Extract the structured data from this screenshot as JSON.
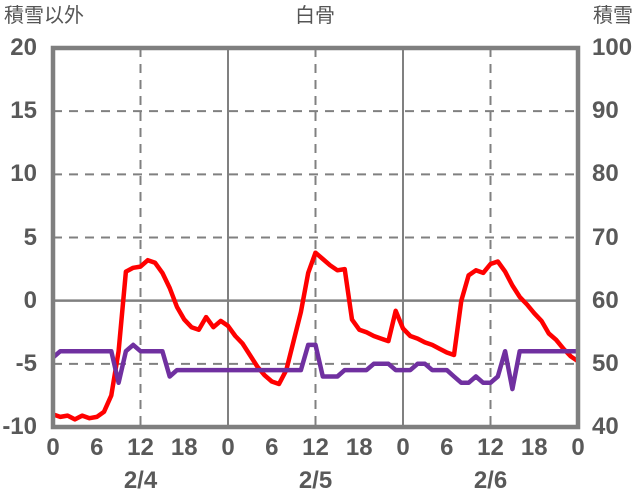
{
  "chart_data": {
    "type": "line",
    "title": "白骨",
    "left_axis": {
      "title": "積雪以外",
      "min": -10,
      "max": 20,
      "ticks": [
        20,
        15,
        10,
        5,
        0,
        -5,
        -10
      ]
    },
    "right_axis": {
      "title": "積雪",
      "min": 40,
      "max": 100,
      "ticks": [
        100,
        90,
        80,
        70,
        60,
        50,
        40
      ]
    },
    "x_axis": {
      "hours_total": 72,
      "tick_step_hours": 6,
      "hour_ticks": [
        "0",
        "6",
        "12",
        "18",
        "0",
        "6",
        "12",
        "18",
        "0",
        "6",
        "12",
        "18",
        "0"
      ],
      "day_labels": [
        "2/4",
        "2/5",
        "2/6"
      ]
    },
    "gridlines": {
      "h_dashed_values": [
        15,
        10,
        5,
        -5
      ],
      "h_solid_values": [
        0
      ],
      "v_dashed_hours": [
        12,
        36,
        60
      ],
      "v_solid_hours": [
        24,
        48
      ]
    },
    "style": {
      "grid_color": "#808080",
      "border_color": "#7f7f7f",
      "text_color": "#595959",
      "line_width": 4.5
    },
    "series": [
      {
        "name": "積雪以外",
        "axis": "left",
        "color": "#ff0000",
        "x_step_hours": 1,
        "values": [
          -9.0,
          -9.2,
          -9.1,
          -9.4,
          -9.1,
          -9.3,
          -9.2,
          -8.8,
          -7.5,
          -4.0,
          2.3,
          2.6,
          2.7,
          3.2,
          3.0,
          2.2,
          1.0,
          -0.5,
          -1.5,
          -2.1,
          -2.3,
          -1.3,
          -2.1,
          -1.6,
          -2.0,
          -2.8,
          -3.4,
          -4.3,
          -5.2,
          -5.9,
          -6.4,
          -6.6,
          -5.5,
          -3.2,
          -0.9,
          2.2,
          3.8,
          3.3,
          2.8,
          2.4,
          2.5,
          -1.5,
          -2.3,
          -2.5,
          -2.8,
          -3.0,
          -3.2,
          -0.8,
          -2.2,
          -2.8,
          -3.0,
          -3.3,
          -3.5,
          -3.8,
          -4.1,
          -4.3,
          0.0,
          2.0,
          2.4,
          2.2,
          2.9,
          3.1,
          2.3,
          1.2,
          0.3,
          -0.3,
          -1.0,
          -1.6,
          -2.6,
          -3.1,
          -3.8,
          -4.4,
          -4.8
        ]
      },
      {
        "name": "積雪",
        "axis": "right",
        "color": "#7030a0",
        "x_step_hours": 1,
        "values": [
          51,
          52,
          52,
          52,
          52,
          52,
          52,
          52,
          52,
          47,
          52,
          53,
          52,
          52,
          52,
          52,
          48,
          49,
          49,
          49,
          49,
          49,
          49,
          49,
          49,
          49,
          49,
          49,
          49,
          49,
          49,
          49,
          49,
          49,
          49,
          53,
          53,
          48,
          48,
          48,
          49,
          49,
          49,
          49,
          50,
          50,
          50,
          49,
          49,
          49,
          50,
          50,
          49,
          49,
          49,
          48,
          47,
          47,
          48,
          47,
          47,
          48,
          52,
          46,
          52,
          52,
          52,
          52,
          52,
          52,
          52,
          52,
          52
        ]
      }
    ]
  }
}
